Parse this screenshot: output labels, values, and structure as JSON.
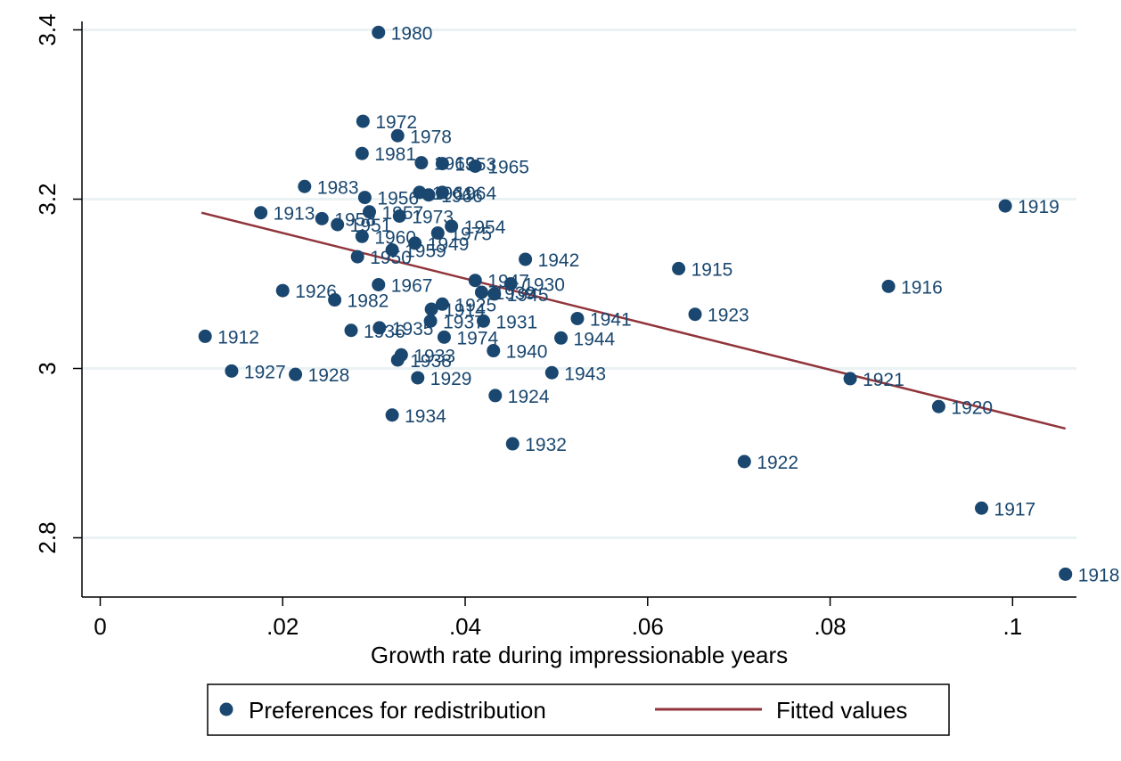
{
  "chart_data": {
    "type": "scatter",
    "title": "",
    "xlabel": "Growth rate during impressionable years",
    "ylabel": "",
    "xlim": [
      -0.002,
      0.107
    ],
    "ylim": [
      2.73,
      3.41
    ],
    "x_ticks": [
      0,
      0.02,
      0.04,
      0.06,
      0.08,
      0.1
    ],
    "x_tick_labels": [
      "0",
      ".02",
      ".04",
      ".06",
      ".08",
      ".1"
    ],
    "y_ticks": [
      2.8,
      3.0,
      3.2,
      3.4
    ],
    "y_tick_labels": [
      "2.8",
      "3",
      "3.2",
      "3.4"
    ],
    "grid": "horizontal",
    "legend_position": "bottom",
    "colors": {
      "points": "#1a476f",
      "fit_line": "#90353b",
      "grid": "#eaf2f3"
    },
    "series": [
      {
        "name": "Preferences for redistribution",
        "points": [
          {
            "label": "1980",
            "x": 0.0305,
            "y": 3.397
          },
          {
            "label": "1972",
            "x": 0.0288,
            "y": 3.292
          },
          {
            "label": "1978",
            "x": 0.0326,
            "y": 3.275
          },
          {
            "label": "1981",
            "x": 0.0287,
            "y": 3.254
          },
          {
            "label": "1963",
            "x": 0.0352,
            "y": 3.243
          },
          {
            "label": "1953",
            "x": 0.0375,
            "y": 3.242
          },
          {
            "label": "1965",
            "x": 0.0411,
            "y": 3.239
          },
          {
            "label": "1983",
            "x": 0.0224,
            "y": 3.215
          },
          {
            "label": "1913",
            "x": 0.0176,
            "y": 3.184
          },
          {
            "label": "1958",
            "x": 0.0243,
            "y": 3.177
          },
          {
            "label": "1951",
            "x": 0.026,
            "y": 3.17
          },
          {
            "label": "1957",
            "x": 0.0295,
            "y": 3.185
          },
          {
            "label": "1956",
            "x": 0.029,
            "y": 3.202
          },
          {
            "label": "1961",
            "x": 0.035,
            "y": 3.208
          },
          {
            "label": "1964",
            "x": 0.0375,
            "y": 3.208
          },
          {
            "label": "1966",
            "x": 0.036,
            "y": 3.205
          },
          {
            "label": "1973",
            "x": 0.0328,
            "y": 3.18
          },
          {
            "label": "1954",
            "x": 0.0385,
            "y": 3.168
          },
          {
            "label": "1975",
            "x": 0.037,
            "y": 3.16
          },
          {
            "label": "1959",
            "x": 0.032,
            "y": 3.14
          },
          {
            "label": "1949",
            "x": 0.0345,
            "y": 3.148
          },
          {
            "label": "1960",
            "x": 0.0287,
            "y": 3.156
          },
          {
            "label": "1950",
            "x": 0.0282,
            "y": 3.132
          },
          {
            "label": "1942",
            "x": 0.0466,
            "y": 3.129
          },
          {
            "label": "1915",
            "x": 0.0634,
            "y": 3.118
          },
          {
            "label": "1919",
            "x": 0.0992,
            "y": 3.192
          },
          {
            "label": "1916",
            "x": 0.0864,
            "y": 3.097
          },
          {
            "label": "1926",
            "x": 0.02,
            "y": 3.092
          },
          {
            "label": "1967",
            "x": 0.0305,
            "y": 3.099
          },
          {
            "label": "1947",
            "x": 0.0411,
            "y": 3.104
          },
          {
            "label": "1930",
            "x": 0.045,
            "y": 3.1
          },
          {
            "label": "1945",
            "x": 0.0432,
            "y": 3.088
          },
          {
            "label": "1939",
            "x": 0.0418,
            "y": 3.09
          },
          {
            "label": "1982",
            "x": 0.0257,
            "y": 3.081
          },
          {
            "label": "1925",
            "x": 0.0375,
            "y": 3.076
          },
          {
            "label": "1914",
            "x": 0.0363,
            "y": 3.07
          },
          {
            "label": "1923",
            "x": 0.0652,
            "y": 3.064
          },
          {
            "label": "1941",
            "x": 0.0523,
            "y": 3.059
          },
          {
            "label": "1931",
            "x": 0.042,
            "y": 3.056
          },
          {
            "label": "1937",
            "x": 0.0362,
            "y": 3.056
          },
          {
            "label": "1912",
            "x": 0.0115,
            "y": 3.038
          },
          {
            "label": "1936",
            "x": 0.0275,
            "y": 3.045
          },
          {
            "label": "1935",
            "x": 0.0306,
            "y": 3.048
          },
          {
            "label": "1974",
            "x": 0.0377,
            "y": 3.037
          },
          {
            "label": "1944",
            "x": 0.0505,
            "y": 3.036
          },
          {
            "label": "1940",
            "x": 0.0431,
            "y": 3.021
          },
          {
            "label": "1933",
            "x": 0.033,
            "y": 3.016
          },
          {
            "label": "1938",
            "x": 0.0326,
            "y": 3.01
          },
          {
            "label": "1927",
            "x": 0.0144,
            "y": 2.997
          },
          {
            "label": "1928",
            "x": 0.0214,
            "y": 2.993
          },
          {
            "label": "1929",
            "x": 0.0348,
            "y": 2.989
          },
          {
            "label": "1943",
            "x": 0.0495,
            "y": 2.995
          },
          {
            "label": "1921",
            "x": 0.0822,
            "y": 2.988
          },
          {
            "label": "1924",
            "x": 0.0433,
            "y": 2.968
          },
          {
            "label": "1920",
            "x": 0.0919,
            "y": 2.955
          },
          {
            "label": "1934",
            "x": 0.032,
            "y": 2.945
          },
          {
            "label": "1932",
            "x": 0.0452,
            "y": 2.911
          },
          {
            "label": "1922",
            "x": 0.0706,
            "y": 2.89
          },
          {
            "label": "1917",
            "x": 0.0966,
            "y": 2.835
          },
          {
            "label": "1918",
            "x": 0.1058,
            "y": 2.757
          }
        ]
      },
      {
        "name": "Fitted values",
        "type": "line",
        "x": [
          0.0111,
          0.1058
        ],
        "y": [
          3.184,
          2.929
        ]
      }
    ]
  }
}
